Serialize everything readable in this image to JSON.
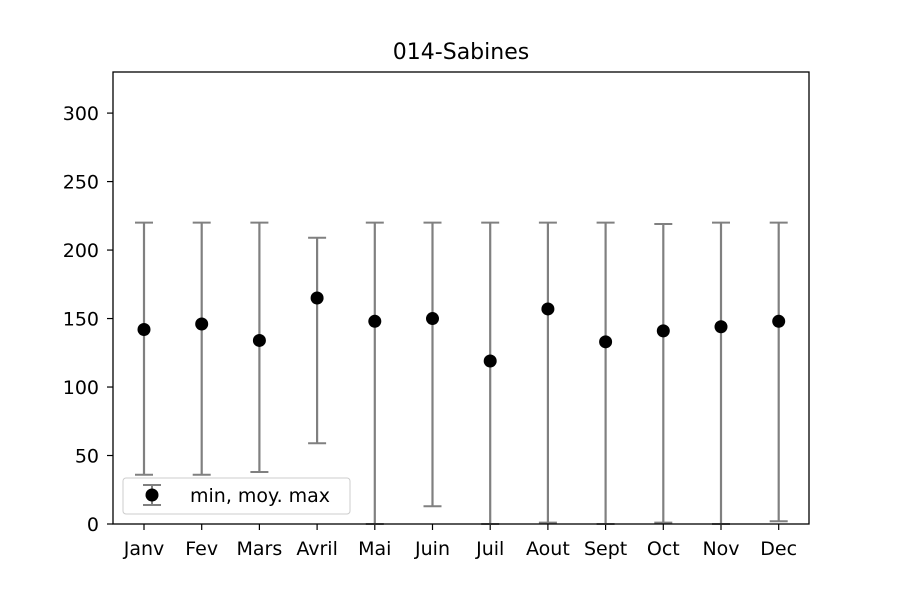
{
  "chart_data": {
    "type": "scatter",
    "title": "014-Sabines",
    "xlabel": "",
    "ylabel": "",
    "categories": [
      "Janv",
      "Fev",
      "Mars",
      "Avril",
      "Mai",
      "Juin",
      "Juil",
      "Aout",
      "Sept",
      "Oct",
      "Nov",
      "Dec"
    ],
    "series": [
      {
        "name": "min, moy. max",
        "mean": [
          142,
          146,
          134,
          165,
          148,
          150,
          119,
          157,
          133,
          141,
          144,
          148
        ],
        "min": [
          36,
          36,
          38,
          59,
          0,
          13,
          0,
          1,
          0,
          1,
          0,
          2
        ],
        "max": [
          220,
          220,
          220,
          209,
          220,
          220,
          220,
          220,
          220,
          219,
          220,
          220
        ]
      }
    ],
    "ylim": [
      0,
      330
    ],
    "yticks": [
      0,
      50,
      100,
      150,
      200,
      250,
      300
    ],
    "grid": false,
    "legend_position": "lower-left",
    "colors": {
      "marker": "#000000",
      "errorbar": "#808080",
      "frame": "#000000"
    }
  }
}
